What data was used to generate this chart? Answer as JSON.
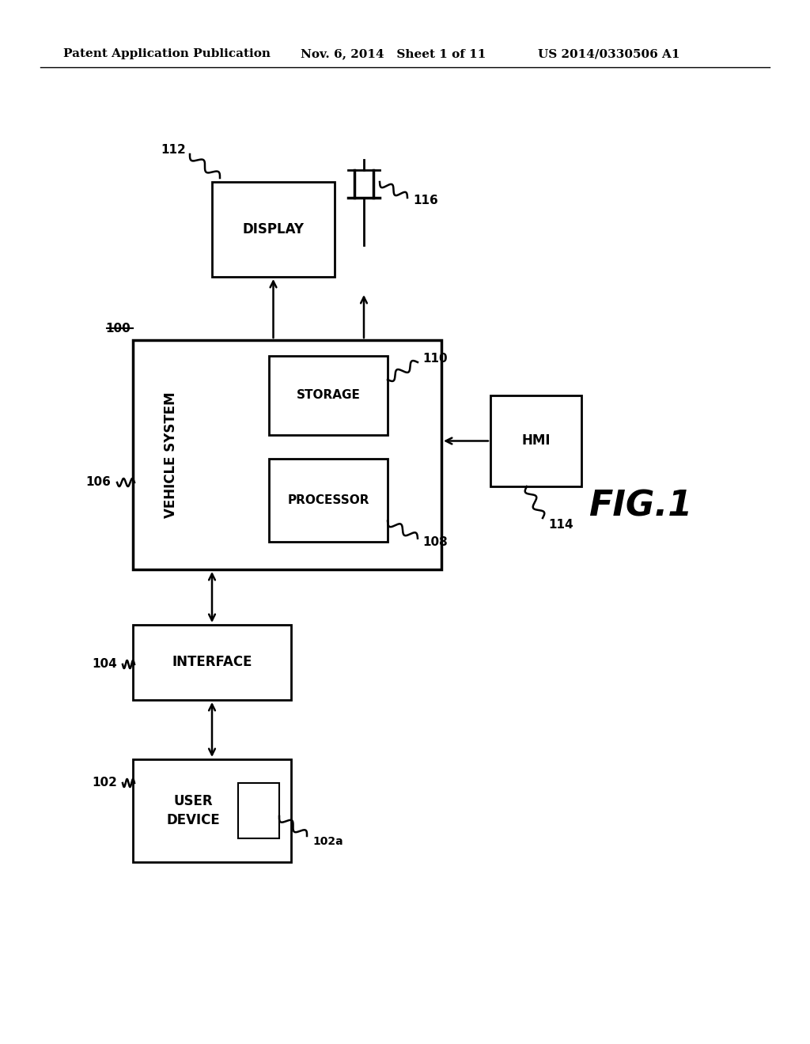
{
  "background_color": "#ffffff",
  "header_left": "Patent Application Publication",
  "header_mid": "Nov. 6, 2014   Sheet 1 of 11",
  "header_right": "US 2014/0330506 A1",
  "fig_label": "FIG.1"
}
